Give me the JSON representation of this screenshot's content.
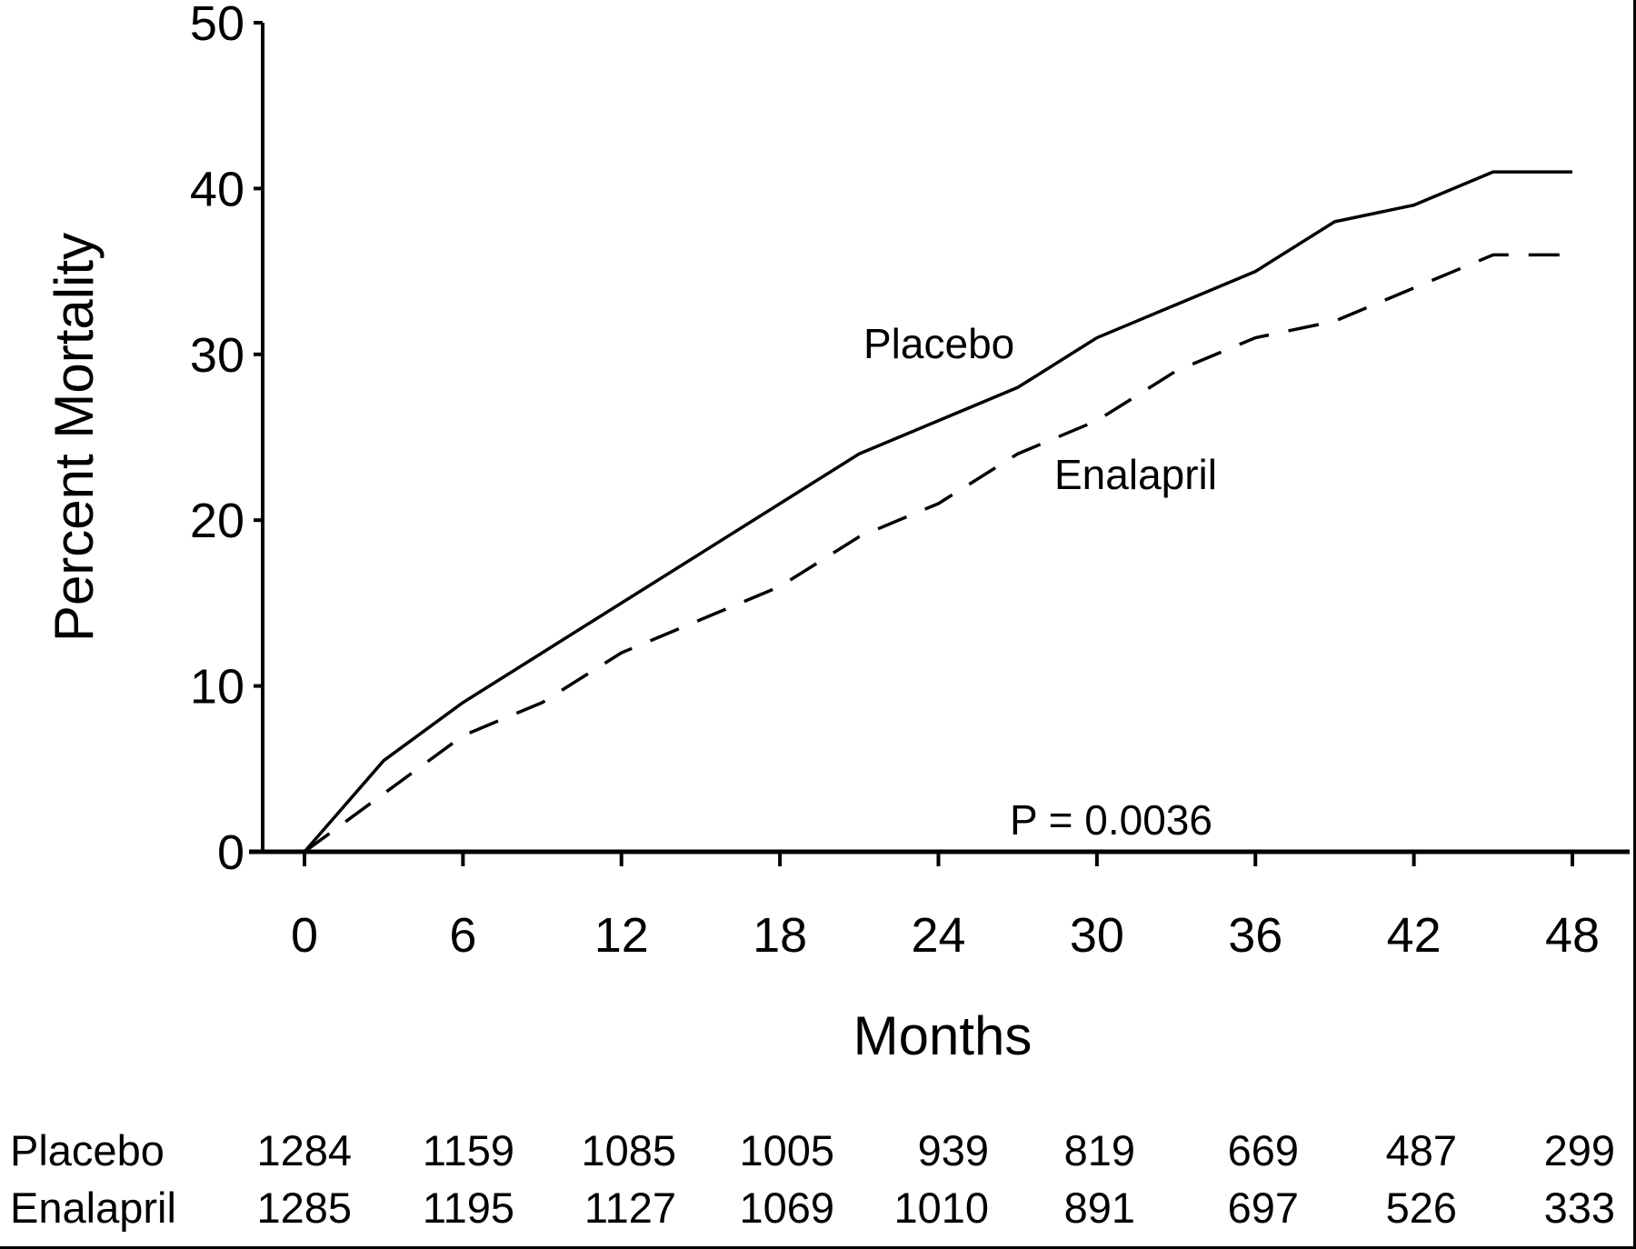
{
  "chart_data": {
    "type": "line",
    "title": "",
    "xlabel": "Months",
    "ylabel": "Percent Mortality",
    "xlim": [
      0,
      48
    ],
    "ylim": [
      0,
      50
    ],
    "xticks": [
      "0",
      "6",
      "12",
      "18",
      "24",
      "30",
      "36",
      "42",
      "48"
    ],
    "yticks": [
      "0",
      "10",
      "20",
      "30",
      "40",
      "50"
    ],
    "grid": false,
    "series": [
      {
        "name": "Placebo",
        "style": "solid",
        "x": [
          0,
          3,
          6,
          9,
          12,
          15,
          18,
          21,
          24,
          27,
          30,
          33,
          36,
          39,
          42,
          45,
          48
        ],
        "y": [
          0,
          5.5,
          9,
          12,
          15,
          18,
          21,
          24,
          26,
          28,
          31,
          33,
          35,
          38,
          39,
          41,
          41
        ]
      },
      {
        "name": "Enalapril",
        "style": "dashed",
        "x": [
          0,
          3,
          6,
          9,
          12,
          15,
          18,
          21,
          24,
          27,
          30,
          33,
          36,
          39,
          42,
          45,
          48
        ],
        "y": [
          0,
          3.5,
          7,
          9,
          12,
          14,
          16,
          19,
          21,
          24,
          26,
          29,
          31,
          32,
          34,
          36,
          36
        ]
      }
    ],
    "annotations": {
      "placebo_label": "Placebo",
      "enalapril_label": "Enalapril",
      "p_value": "P = 0.0036"
    },
    "at_risk_table": {
      "rows": [
        {
          "label": "Placebo",
          "values": [
            "1284",
            "1159",
            "1085",
            "1005",
            "939",
            "819",
            "669",
            "487",
            "299"
          ]
        },
        {
          "label": "Enalapril",
          "values": [
            "1285",
            "1195",
            "1127",
            "1069",
            "1010",
            "891",
            "697",
            "526",
            "333"
          ]
        }
      ]
    }
  }
}
